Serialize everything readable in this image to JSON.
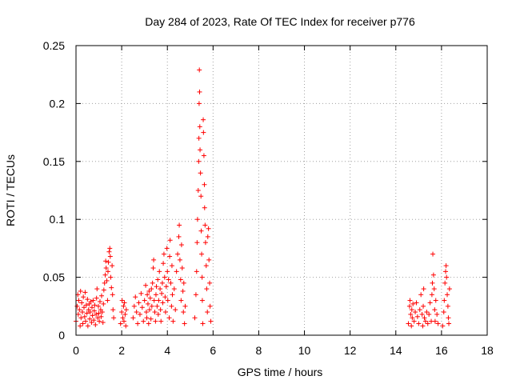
{
  "chart_data": {
    "type": "scatter",
    "title": "Day 284 of 2023, Rate Of TEC Index for receiver p776",
    "xlabel": "GPS time / hours",
    "ylabel": "ROTI / TECUs",
    "xlim": [
      0,
      18
    ],
    "ylim": [
      0,
      0.25
    ],
    "x_ticks": [
      "0",
      "2",
      "4",
      "6",
      "8",
      "10",
      "12",
      "14",
      "16",
      "18"
    ],
    "y_ticks": [
      "0",
      "0.05",
      "0.1",
      "0.15",
      "0.2",
      "0.25"
    ],
    "grid": true,
    "marker": "+",
    "color": "#ff0000",
    "series": [
      {
        "name": "ROTI",
        "points": [
          [
            0.0,
            0.012
          ],
          [
            0.05,
            0.025
          ],
          [
            0.08,
            0.035
          ],
          [
            0.1,
            0.018
          ],
          [
            0.12,
            0.03
          ],
          [
            0.15,
            0.022
          ],
          [
            0.18,
            0.008
          ],
          [
            0.2,
            0.038
          ],
          [
            0.22,
            0.015
          ],
          [
            0.25,
            0.028
          ],
          [
            0.28,
            0.02
          ],
          [
            0.3,
            0.01
          ],
          [
            0.32,
            0.033
          ],
          [
            0.35,
            0.024
          ],
          [
            0.38,
            0.016
          ],
          [
            0.4,
            0.037
          ],
          [
            0.42,
            0.012
          ],
          [
            0.45,
            0.026
          ],
          [
            0.48,
            0.019
          ],
          [
            0.5,
            0.031
          ],
          [
            0.52,
            0.008
          ],
          [
            0.55,
            0.022
          ],
          [
            0.58,
            0.027
          ],
          [
            0.6,
            0.014
          ],
          [
            0.62,
            0.02
          ],
          [
            0.65,
            0.029
          ],
          [
            0.68,
            0.011
          ],
          [
            0.7,
            0.024
          ],
          [
            0.72,
            0.017
          ],
          [
            0.75,
            0.03
          ],
          [
            0.78,
            0.013
          ],
          [
            0.8,
            0.021
          ],
          [
            0.82,
            0.026
          ],
          [
            0.85,
            0.009
          ],
          [
            0.88,
            0.018
          ],
          [
            0.9,
            0.032
          ],
          [
            0.92,
            0.04
          ],
          [
            0.95,
            0.015
          ],
          [
            0.98,
            0.025
          ],
          [
            1.0,
            0.019
          ],
          [
            1.02,
            0.012
          ],
          [
            1.05,
            0.029
          ],
          [
            1.08,
            0.022
          ],
          [
            1.1,
            0.016
          ],
          [
            1.12,
            0.034
          ],
          [
            1.15,
            0.02
          ],
          [
            1.18,
            0.011
          ],
          [
            1.2,
            0.027
          ],
          [
            1.22,
            0.039
          ],
          [
            1.25,
            0.045
          ],
          [
            1.28,
            0.052
          ],
          [
            1.3,
            0.064
          ],
          [
            1.32,
            0.058
          ],
          [
            1.35,
            0.047
          ],
          [
            1.38,
            0.03
          ],
          [
            1.4,
            0.055
          ],
          [
            1.42,
            0.063
          ],
          [
            1.45,
            0.072
          ],
          [
            1.48,
            0.075
          ],
          [
            1.5,
            0.068
          ],
          [
            1.52,
            0.05
          ],
          [
            1.55,
            0.041
          ],
          [
            1.58,
            0.06
          ],
          [
            1.6,
            0.035
          ],
          [
            1.62,
            0.022
          ],
          [
            1.65,
            0.015
          ],
          [
            1.95,
            0.01
          ],
          [
            2.0,
            0.02
          ],
          [
            2.02,
            0.03
          ],
          [
            2.05,
            0.015
          ],
          [
            2.08,
            0.025
          ],
          [
            2.1,
            0.012
          ],
          [
            2.12,
            0.028
          ],
          [
            2.15,
            0.018
          ],
          [
            2.18,
            0.008
          ],
          [
            2.2,
            0.022
          ],
          [
            2.5,
            0.015
          ],
          [
            2.55,
            0.025
          ],
          [
            2.6,
            0.033
          ],
          [
            2.65,
            0.02
          ],
          [
            2.7,
            0.01
          ],
          [
            2.75,
            0.028
          ],
          [
            2.8,
            0.018
          ],
          [
            2.85,
            0.036
          ],
          [
            2.9,
            0.024
          ],
          [
            2.95,
            0.012
          ],
          [
            3.0,
            0.03
          ],
          [
            3.05,
            0.043
          ],
          [
            3.08,
            0.02
          ],
          [
            3.1,
            0.015
          ],
          [
            3.12,
            0.035
          ],
          [
            3.15,
            0.027
          ],
          [
            3.18,
            0.01
          ],
          [
            3.2,
            0.038
          ],
          [
            3.22,
            0.022
          ],
          [
            3.25,
            0.032
          ],
          [
            3.28,
            0.014
          ],
          [
            3.3,
            0.04
          ],
          [
            3.32,
            0.025
          ],
          [
            3.35,
            0.045
          ],
          [
            3.38,
            0.058
          ],
          [
            3.4,
            0.065
          ],
          [
            3.42,
            0.03
          ],
          [
            3.45,
            0.02
          ],
          [
            3.48,
            0.012
          ],
          [
            3.5,
            0.035
          ],
          [
            3.52,
            0.042
          ],
          [
            3.55,
            0.025
          ],
          [
            3.58,
            0.048
          ],
          [
            3.6,
            0.018
          ],
          [
            3.62,
            0.03
          ],
          [
            3.65,
            0.055
          ],
          [
            3.68,
            0.04
          ],
          [
            3.7,
            0.022
          ],
          [
            3.72,
            0.012
          ],
          [
            3.75,
            0.036
          ],
          [
            3.78,
            0.045
          ],
          [
            3.8,
            0.028
          ],
          [
            3.82,
            0.062
          ],
          [
            3.85,
            0.07
          ],
          [
            3.88,
            0.05
          ],
          [
            3.9,
            0.033
          ],
          [
            3.92,
            0.02
          ],
          [
            3.95,
            0.042
          ],
          [
            3.98,
            0.075
          ],
          [
            4.0,
            0.055
          ],
          [
            4.02,
            0.03
          ],
          [
            4.05,
            0.048
          ],
          [
            4.08,
            0.015
          ],
          [
            4.1,
            0.068
          ],
          [
            4.12,
            0.082
          ],
          [
            4.15,
            0.045
          ],
          [
            4.18,
            0.025
          ],
          [
            4.2,
            0.06
          ],
          [
            4.22,
            0.035
          ],
          [
            4.25,
            0.012
          ],
          [
            4.3,
            0.04
          ],
          [
            4.35,
            0.022
          ],
          [
            4.4,
            0.055
          ],
          [
            4.45,
            0.07
          ],
          [
            4.5,
            0.085
          ],
          [
            4.52,
            0.095
          ],
          [
            4.55,
            0.065
          ],
          [
            4.58,
            0.048
          ],
          [
            4.6,
            0.03
          ],
          [
            4.62,
            0.078
          ],
          [
            4.65,
            0.058
          ],
          [
            4.68,
            0.038
          ],
          [
            4.7,
            0.02
          ],
          [
            4.72,
            0.045
          ],
          [
            4.75,
            0.01
          ],
          [
            4.78,
            0.025
          ],
          [
            5.2,
            0.015
          ],
          [
            5.25,
            0.035
          ],
          [
            5.28,
            0.055
          ],
          [
            5.3,
            0.08
          ],
          [
            5.32,
            0.1
          ],
          [
            5.35,
            0.125
          ],
          [
            5.37,
            0.15
          ],
          [
            5.38,
            0.17
          ],
          [
            5.39,
            0.2
          ],
          [
            5.4,
            0.229
          ],
          [
            5.41,
            0.21
          ],
          [
            5.42,
            0.18
          ],
          [
            5.43,
            0.16
          ],
          [
            5.45,
            0.14
          ],
          [
            5.47,
            0.12
          ],
          [
            5.48,
            0.09
          ],
          [
            5.5,
            0.07
          ],
          [
            5.52,
            0.05
          ],
          [
            5.53,
            0.03
          ],
          [
            5.55,
            0.01
          ],
          [
            5.57,
            0.186
          ],
          [
            5.58,
            0.175
          ],
          [
            5.6,
            0.155
          ],
          [
            5.62,
            0.13
          ],
          [
            5.63,
            0.11
          ],
          [
            5.65,
            0.095
          ],
          [
            5.67,
            0.08
          ],
          [
            5.7,
            0.06
          ],
          [
            5.72,
            0.04
          ],
          [
            5.75,
            0.02
          ],
          [
            5.77,
            0.085
          ],
          [
            5.8,
            0.092
          ],
          [
            5.82,
            0.065
          ],
          [
            5.85,
            0.045
          ],
          [
            5.87,
            0.025
          ],
          [
            5.9,
            0.012
          ],
          [
            14.55,
            0.01
          ],
          [
            14.6,
            0.025
          ],
          [
            14.62,
            0.03
          ],
          [
            14.65,
            0.018
          ],
          [
            14.68,
            0.008
          ],
          [
            14.7,
            0.022
          ],
          [
            14.72,
            0.015
          ],
          [
            14.75,
            0.027
          ],
          [
            14.8,
            0.012
          ],
          [
            14.85,
            0.02
          ],
          [
            14.9,
            0.028
          ],
          [
            14.95,
            0.016
          ],
          [
            15.0,
            0.01
          ],
          [
            15.05,
            0.022
          ],
          [
            15.1,
            0.035
          ],
          [
            15.15,
            0.018
          ],
          [
            15.18,
            0.008
          ],
          [
            15.2,
            0.025
          ],
          [
            15.22,
            0.04
          ],
          [
            15.25,
            0.015
          ],
          [
            15.3,
            0.012
          ],
          [
            15.35,
            0.02
          ],
          [
            15.4,
            0.01
          ],
          [
            15.45,
            0.018
          ],
          [
            15.5,
            0.028
          ],
          [
            15.55,
            0.012
          ],
          [
            15.58,
            0.035
          ],
          [
            15.6,
            0.045
          ],
          [
            15.62,
            0.07
          ],
          [
            15.65,
            0.052
          ],
          [
            15.68,
            0.04
          ],
          [
            15.7,
            0.022
          ],
          [
            15.72,
            0.012
          ],
          [
            15.75,
            0.03
          ],
          [
            15.8,
            0.018
          ],
          [
            15.85,
            0.01
          ],
          [
            16.05,
            0.008
          ],
          [
            16.1,
            0.02
          ],
          [
            16.12,
            0.03
          ],
          [
            16.15,
            0.045
          ],
          [
            16.18,
            0.055
          ],
          [
            16.2,
            0.06
          ],
          [
            16.22,
            0.05
          ],
          [
            16.25,
            0.035
          ],
          [
            16.28,
            0.025
          ],
          [
            16.3,
            0.015
          ],
          [
            16.32,
            0.01
          ],
          [
            16.35,
            0.04
          ]
        ]
      }
    ]
  }
}
